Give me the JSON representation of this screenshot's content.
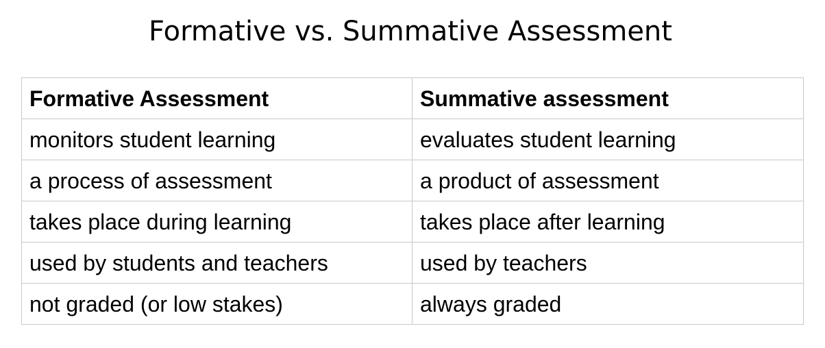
{
  "title": "Formative vs. Summative Assessment",
  "table": {
    "headers": [
      "Formative Assessment",
      "Summative assessment"
    ],
    "rows": [
      [
        "monitors student learning",
        "evaluates student learning"
      ],
      [
        "a process of assessment",
        "a product of assessment"
      ],
      [
        "takes place during learning",
        "takes place after learning"
      ],
      [
        "used by students and teachers",
        "used by teachers"
      ],
      [
        "not graded (or low stakes)",
        "always graded"
      ]
    ]
  },
  "colors": {
    "text": "#000000",
    "border": "#c8c8c8",
    "background": "#ffffff"
  }
}
